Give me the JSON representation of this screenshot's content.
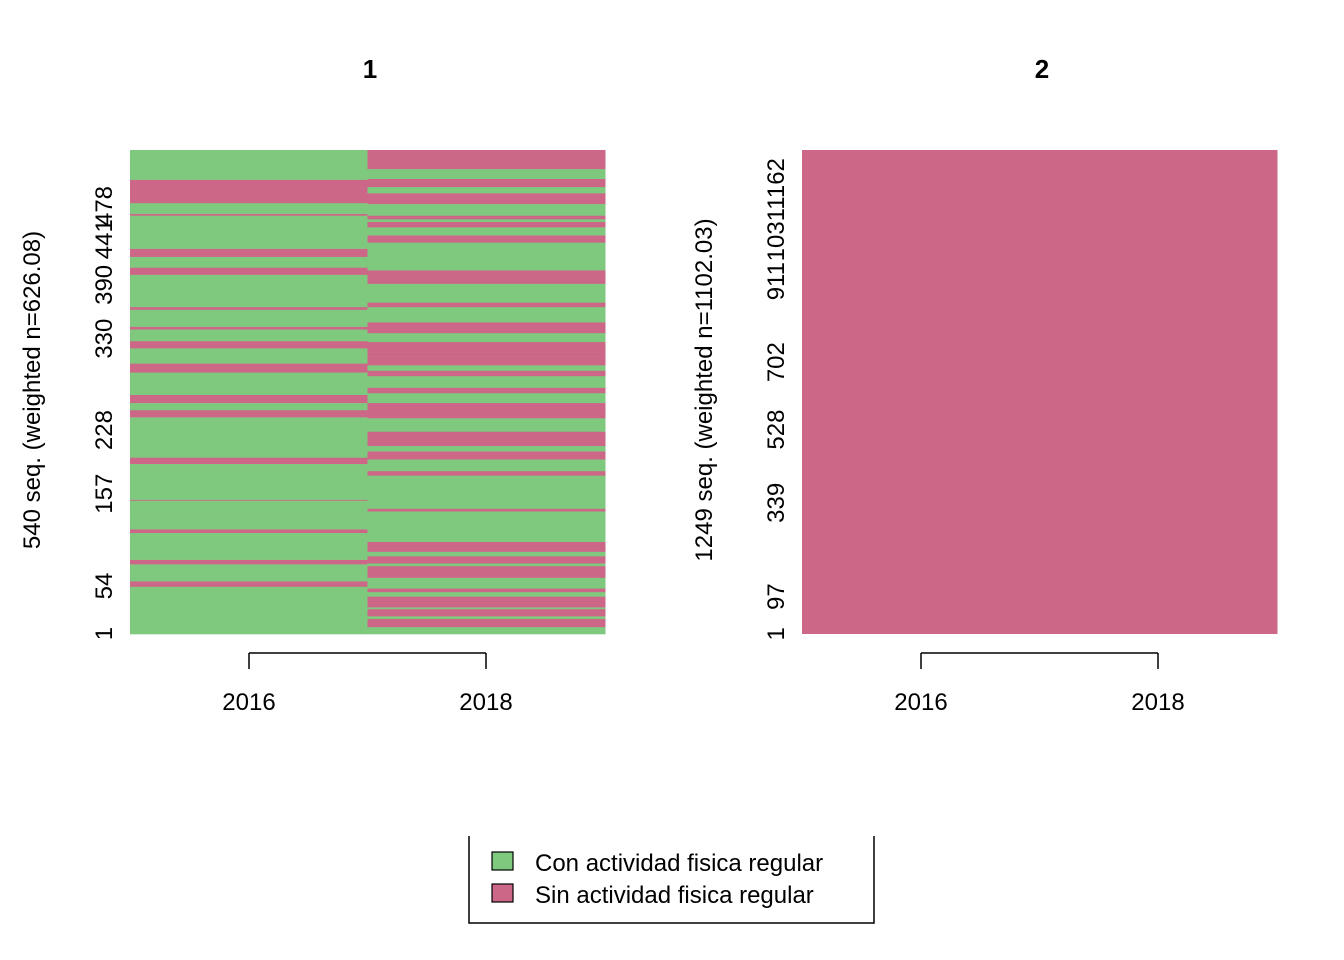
{
  "colors": {
    "state1": "#7FC97F",
    "state2": "#CC6788",
    "axis": "#000000",
    "background": "#FFFFFF"
  },
  "legend": {
    "items": [
      {
        "label": "Con actividad fisica regular",
        "color": "#7FC97F"
      },
      {
        "label": "Sin actividad fisica regular",
        "color": "#CC6788"
      }
    ]
  },
  "chart_data": [
    {
      "type": "heatmap",
      "subtype": "sequence-index-plot",
      "title": "1",
      "ylabel": "540 seq. (weighted n=626.08)",
      "x": [
        "2016",
        "2018"
      ],
      "xticks": [
        "2016",
        "2018"
      ],
      "yticks": [
        "1",
        "54",
        "157",
        "228",
        "330",
        "390",
        "441",
        "478"
      ],
      "n_sequences": 540,
      "weighted_n": 626.08,
      "seed": 7,
      "frac_state1_by_period": [
        0.68,
        0.45
      ]
    },
    {
      "type": "heatmap",
      "subtype": "sequence-index-plot",
      "title": "2",
      "ylabel": "1249 seq. (weighted n=1102.03)",
      "x": [
        "2016",
        "2018"
      ],
      "xticks": [
        "2016",
        "2018"
      ],
      "yticks": [
        "1",
        "97",
        "339",
        "528",
        "702",
        "911",
        "1031",
        "1162"
      ],
      "n_sequences": 1249,
      "weighted_n": 1102.03,
      "uniform_state": "Sin actividad fisica regular",
      "frac_state1_by_period": [
        0,
        0
      ]
    }
  ]
}
